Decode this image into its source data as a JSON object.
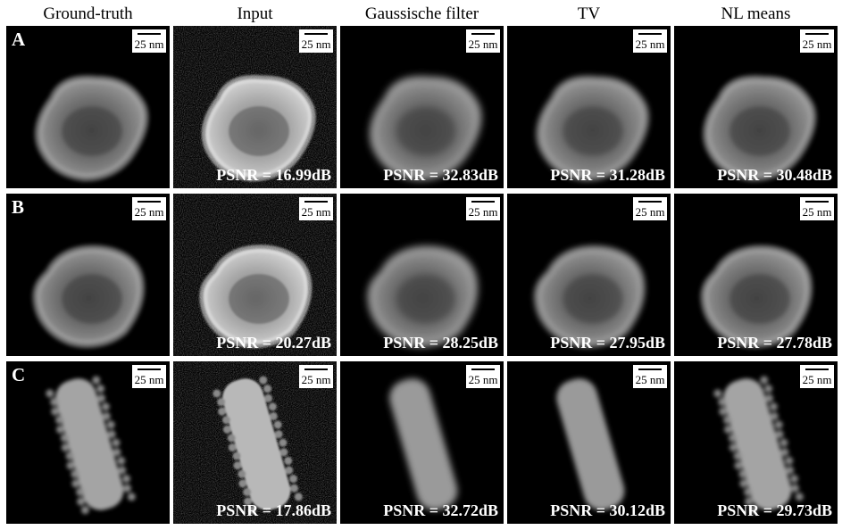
{
  "columns": [
    {
      "title": "Ground-truth"
    },
    {
      "title": "Input"
    },
    {
      "title": "Gaussische filter"
    },
    {
      "title": "TV"
    },
    {
      "title": "NL means"
    }
  ],
  "scale_label": "25 nm",
  "rows": [
    {
      "label": "A",
      "psnr": [
        "",
        "PSNR = 16.99dB",
        "PSNR = 32.83dB",
        "PSNR = 31.28dB",
        "PSNR = 30.48dB"
      ]
    },
    {
      "label": "B",
      "psnr": [
        "",
        "PSNR = 20.27dB",
        "PSNR = 28.25dB",
        "PSNR = 27.95dB",
        "PSNR = 27.78dB"
      ]
    },
    {
      "label": "C",
      "psnr": [
        "",
        "PSNR = 17.86dB",
        "PSNR = 32.72dB",
        "PSNR = 30.12dB",
        "PSNR = 29.73dB"
      ]
    }
  ]
}
